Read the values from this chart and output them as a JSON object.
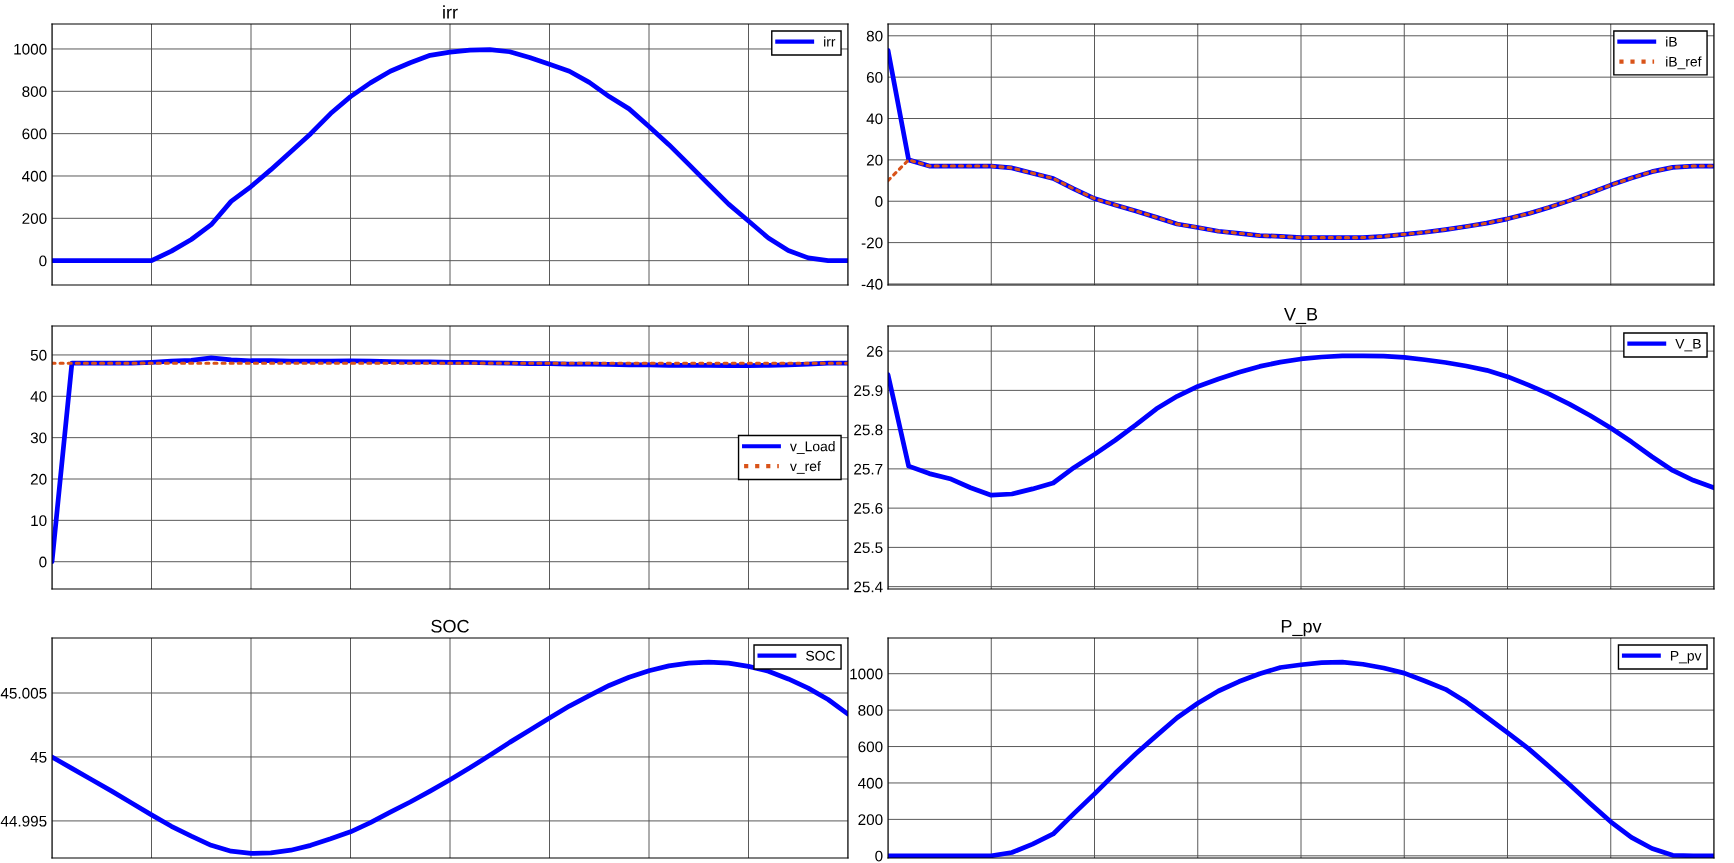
{
  "chart_data": [
    {
      "type": "line",
      "title": "irr",
      "categories": [
        null,
        null,
        null,
        null,
        null,
        null,
        null,
        null,
        null,
        null,
        null,
        null,
        null,
        null,
        null,
        null,
        null,
        null,
        null,
        null,
        null,
        null,
        null,
        null,
        null,
        null,
        null,
        null,
        null,
        null,
        null,
        null,
        null,
        null,
        null,
        null,
        null,
        null,
        null,
        null,
        null
      ],
      "ylim": [
        -115,
        1118
      ],
      "yticks": [
        0,
        200,
        400,
        600,
        800,
        1000
      ],
      "grid": true,
      "legend": "top right",
      "tick_labels": "y",
      "marker": "none",
      "series": [
        {
          "name": "irr",
          "color": "#0000ff",
          "line_style": "solid",
          "values": [
            0,
            0,
            0,
            0,
            0,
            0,
            45,
            100,
            170,
            280,
            350,
            430,
            515,
            600,
            695,
            775,
            840,
            895,
            935,
            970,
            985,
            995,
            997,
            987,
            960,
            928,
            895,
            842,
            775,
            717,
            634,
            548,
            455,
            360,
            267,
            187,
            107,
            48,
            13,
            0,
            0
          ]
        }
      ]
    },
    {
      "type": "line",
      "categories": [
        null,
        null,
        null,
        null,
        null,
        null,
        null,
        null,
        null,
        null,
        null,
        null,
        null,
        null,
        null,
        null,
        null,
        null,
        null,
        null,
        null,
        null,
        null,
        null,
        null,
        null,
        null,
        null,
        null,
        null,
        null,
        null,
        null,
        null,
        null,
        null,
        null,
        null,
        null,
        null,
        null
      ],
      "ylim": [
        -40.5,
        85.7
      ],
      "yticks": [
        -40,
        -20,
        0,
        20,
        40,
        60,
        80
      ],
      "grid": true,
      "legend": "top right",
      "tick_labels": "y",
      "marker": "none",
      "series": [
        {
          "name": "iB",
          "color": "#0000ff",
          "line_style": "solid",
          "values": [
            73,
            20,
            17,
            17,
            17,
            17,
            16.1,
            13.5,
            11,
            6,
            1.3,
            -1.8,
            -4.7,
            -7.8,
            -11,
            -12.7,
            -14.5,
            -15.5,
            -16.6,
            -17,
            -17.6,
            -17.6,
            -17.6,
            -17.6,
            -17,
            -16,
            -15,
            -13.7,
            -12.2,
            -10.6,
            -8.5,
            -6,
            -3,
            0.3,
            4,
            7.8,
            11.2,
            14.3,
            16.4,
            17,
            17
          ]
        },
        {
          "name": "iB_ref",
          "color": "#d95319",
          "line_style": "dotted",
          "values": [
            10,
            20,
            17,
            17,
            17,
            17,
            16.1,
            13.5,
            11,
            6,
            1.3,
            -1.8,
            -4.7,
            -7.8,
            -11,
            -12.7,
            -14.5,
            -15.5,
            -16.6,
            -17,
            -17.6,
            -17.6,
            -17.6,
            -17.6,
            -17,
            -16,
            -15,
            -13.7,
            -12.2,
            -10.6,
            -8.5,
            -6,
            -3,
            0.3,
            4,
            7.8,
            11.2,
            14.3,
            16.4,
            17,
            17
          ]
        }
      ]
    },
    {
      "type": "line",
      "categories": [
        null,
        null,
        null,
        null,
        null,
        null,
        null,
        null,
        null,
        null,
        null,
        null,
        null,
        null,
        null,
        null,
        null,
        null,
        null,
        null,
        null,
        null,
        null,
        null,
        null,
        null,
        null,
        null,
        null,
        null,
        null,
        null,
        null,
        null,
        null,
        null,
        null,
        null,
        null,
        null,
        null
      ],
      "ylim": [
        -6.6,
        57
      ],
      "yticks": [
        0,
        10,
        20,
        30,
        40,
        50
      ],
      "grid": true,
      "legend": "right",
      "tick_labels": "y",
      "marker": "none",
      "series": [
        {
          "name": "v_Load",
          "color": "#0000ff",
          "line_style": "solid",
          "values": [
            0,
            48,
            48,
            48,
            48,
            48.2,
            48.5,
            48.7,
            49.3,
            48.8,
            48.6,
            48.6,
            48.5,
            48.5,
            48.5,
            48.6,
            48.5,
            48.4,
            48.3,
            48.3,
            48.2,
            48.2,
            48.1,
            48,
            47.9,
            47.9,
            47.8,
            47.8,
            47.7,
            47.6,
            47.6,
            47.5,
            47.5,
            47.5,
            47.4,
            47.4,
            47.5,
            47.6,
            47.8,
            48,
            48
          ]
        },
        {
          "name": "v_ref",
          "color": "#d95319",
          "line_style": "dotted",
          "values": [
            48,
            48,
            48,
            48,
            48,
            48,
            48,
            48,
            48,
            48,
            48,
            48,
            48,
            48,
            48,
            48,
            48,
            48,
            48,
            48,
            48,
            48,
            48,
            48,
            48,
            48,
            48,
            48,
            48,
            48,
            48,
            48,
            48,
            48,
            48,
            48,
            48,
            48,
            48,
            48,
            48
          ]
        }
      ]
    },
    {
      "type": "line",
      "title": "V_B",
      "categories": [
        null,
        null,
        null,
        null,
        null,
        null,
        null,
        null,
        null,
        null,
        null,
        null,
        null,
        null,
        null,
        null,
        null,
        null,
        null,
        null,
        null,
        null,
        null,
        null,
        null,
        null,
        null,
        null,
        null,
        null,
        null,
        null,
        null,
        null,
        null,
        null,
        null,
        null,
        null,
        null,
        null
      ],
      "ylim": [
        25.394,
        26.064
      ],
      "yticks": [
        25.4,
        25.5,
        25.6,
        25.7,
        25.8,
        25.9,
        26
      ],
      "grid": true,
      "legend": "top right",
      "tick_labels": "y",
      "marker": "none",
      "series": [
        {
          "name": "V_B",
          "color": "#0000ff",
          "line_style": "solid",
          "values": [
            25.94,
            25.707,
            25.688,
            25.675,
            25.652,
            25.633,
            25.636,
            25.649,
            25.664,
            25.703,
            25.737,
            25.773,
            25.812,
            25.853,
            25.885,
            25.91,
            25.929,
            25.946,
            25.961,
            25.972,
            25.98,
            25.985,
            25.988,
            25.988,
            25.987,
            25.984,
            25.978,
            25.971,
            25.962,
            25.951,
            25.935,
            25.914,
            25.891,
            25.865,
            25.836,
            25.804,
            25.769,
            25.731,
            25.696,
            25.671,
            25.652
          ]
        }
      ]
    },
    {
      "type": "line",
      "title": "SOC",
      "categories": [
        null,
        null,
        null,
        null,
        null,
        null,
        null,
        null,
        null,
        null,
        null,
        null,
        null,
        null,
        null,
        null,
        null,
        null,
        null,
        null,
        null,
        null,
        null,
        null,
        null,
        null,
        null,
        null,
        null,
        null,
        null,
        null,
        null,
        null,
        null,
        null,
        null,
        null,
        null,
        null,
        null
      ],
      "ylim": [
        44.9921,
        45.0093
      ],
      "yticks": [
        44.995,
        45,
        45.005
      ],
      "grid": true,
      "legend": "top right",
      "tick_labels": "y",
      "marker": "none",
      "series": [
        {
          "name": "SOC",
          "color": "#0000ff",
          "line_style": "solid",
          "values": [
            45.0,
            44.99911,
            44.99822,
            44.99733,
            44.9964,
            44.99547,
            44.99458,
            44.99381,
            44.99309,
            44.99263,
            44.99246,
            44.9925,
            44.99271,
            44.99309,
            44.9936,
            44.99415,
            44.99487,
            44.99568,
            44.99648,
            44.99733,
            44.99822,
            44.99915,
            45.00013,
            45.00114,
            45.00208,
            45.00305,
            45.00398,
            45.00479,
            45.00559,
            45.00623,
            45.00674,
            45.00712,
            45.00733,
            45.00742,
            45.00733,
            45.00708,
            45.0067,
            45.0061,
            45.00538,
            45.00449,
            45.00335
          ]
        }
      ]
    },
    {
      "type": "line",
      "title": "P_pv",
      "categories": [
        null,
        null,
        null,
        null,
        null,
        null,
        null,
        null,
        null,
        null,
        null,
        null,
        null,
        null,
        null,
        null,
        null,
        null,
        null,
        null,
        null,
        null,
        null,
        null,
        null,
        null,
        null,
        null,
        null,
        null,
        null,
        null,
        null,
        null,
        null,
        null,
        null,
        null,
        null,
        null,
        null
      ],
      "ylim": [
        -12,
        1196
      ],
      "yticks": [
        0,
        200,
        400,
        600,
        800,
        1000
      ],
      "grid": true,
      "legend": "top right",
      "tick_labels": "y",
      "marker": "none",
      "series": [
        {
          "name": "P_pv",
          "color": "#0000ff",
          "line_style": "solid",
          "values": [
            0,
            0,
            0,
            0,
            0,
            0,
            18,
            64,
            120,
            232,
            340,
            453,
            560,
            660,
            758,
            838,
            905,
            957,
            1000,
            1034,
            1049,
            1061,
            1064,
            1052,
            1031,
            1003,
            960,
            914,
            844,
            761,
            676,
            590,
            492,
            391,
            287,
            187,
            101,
            40,
            3,
            0,
            0
          ]
        }
      ]
    }
  ]
}
